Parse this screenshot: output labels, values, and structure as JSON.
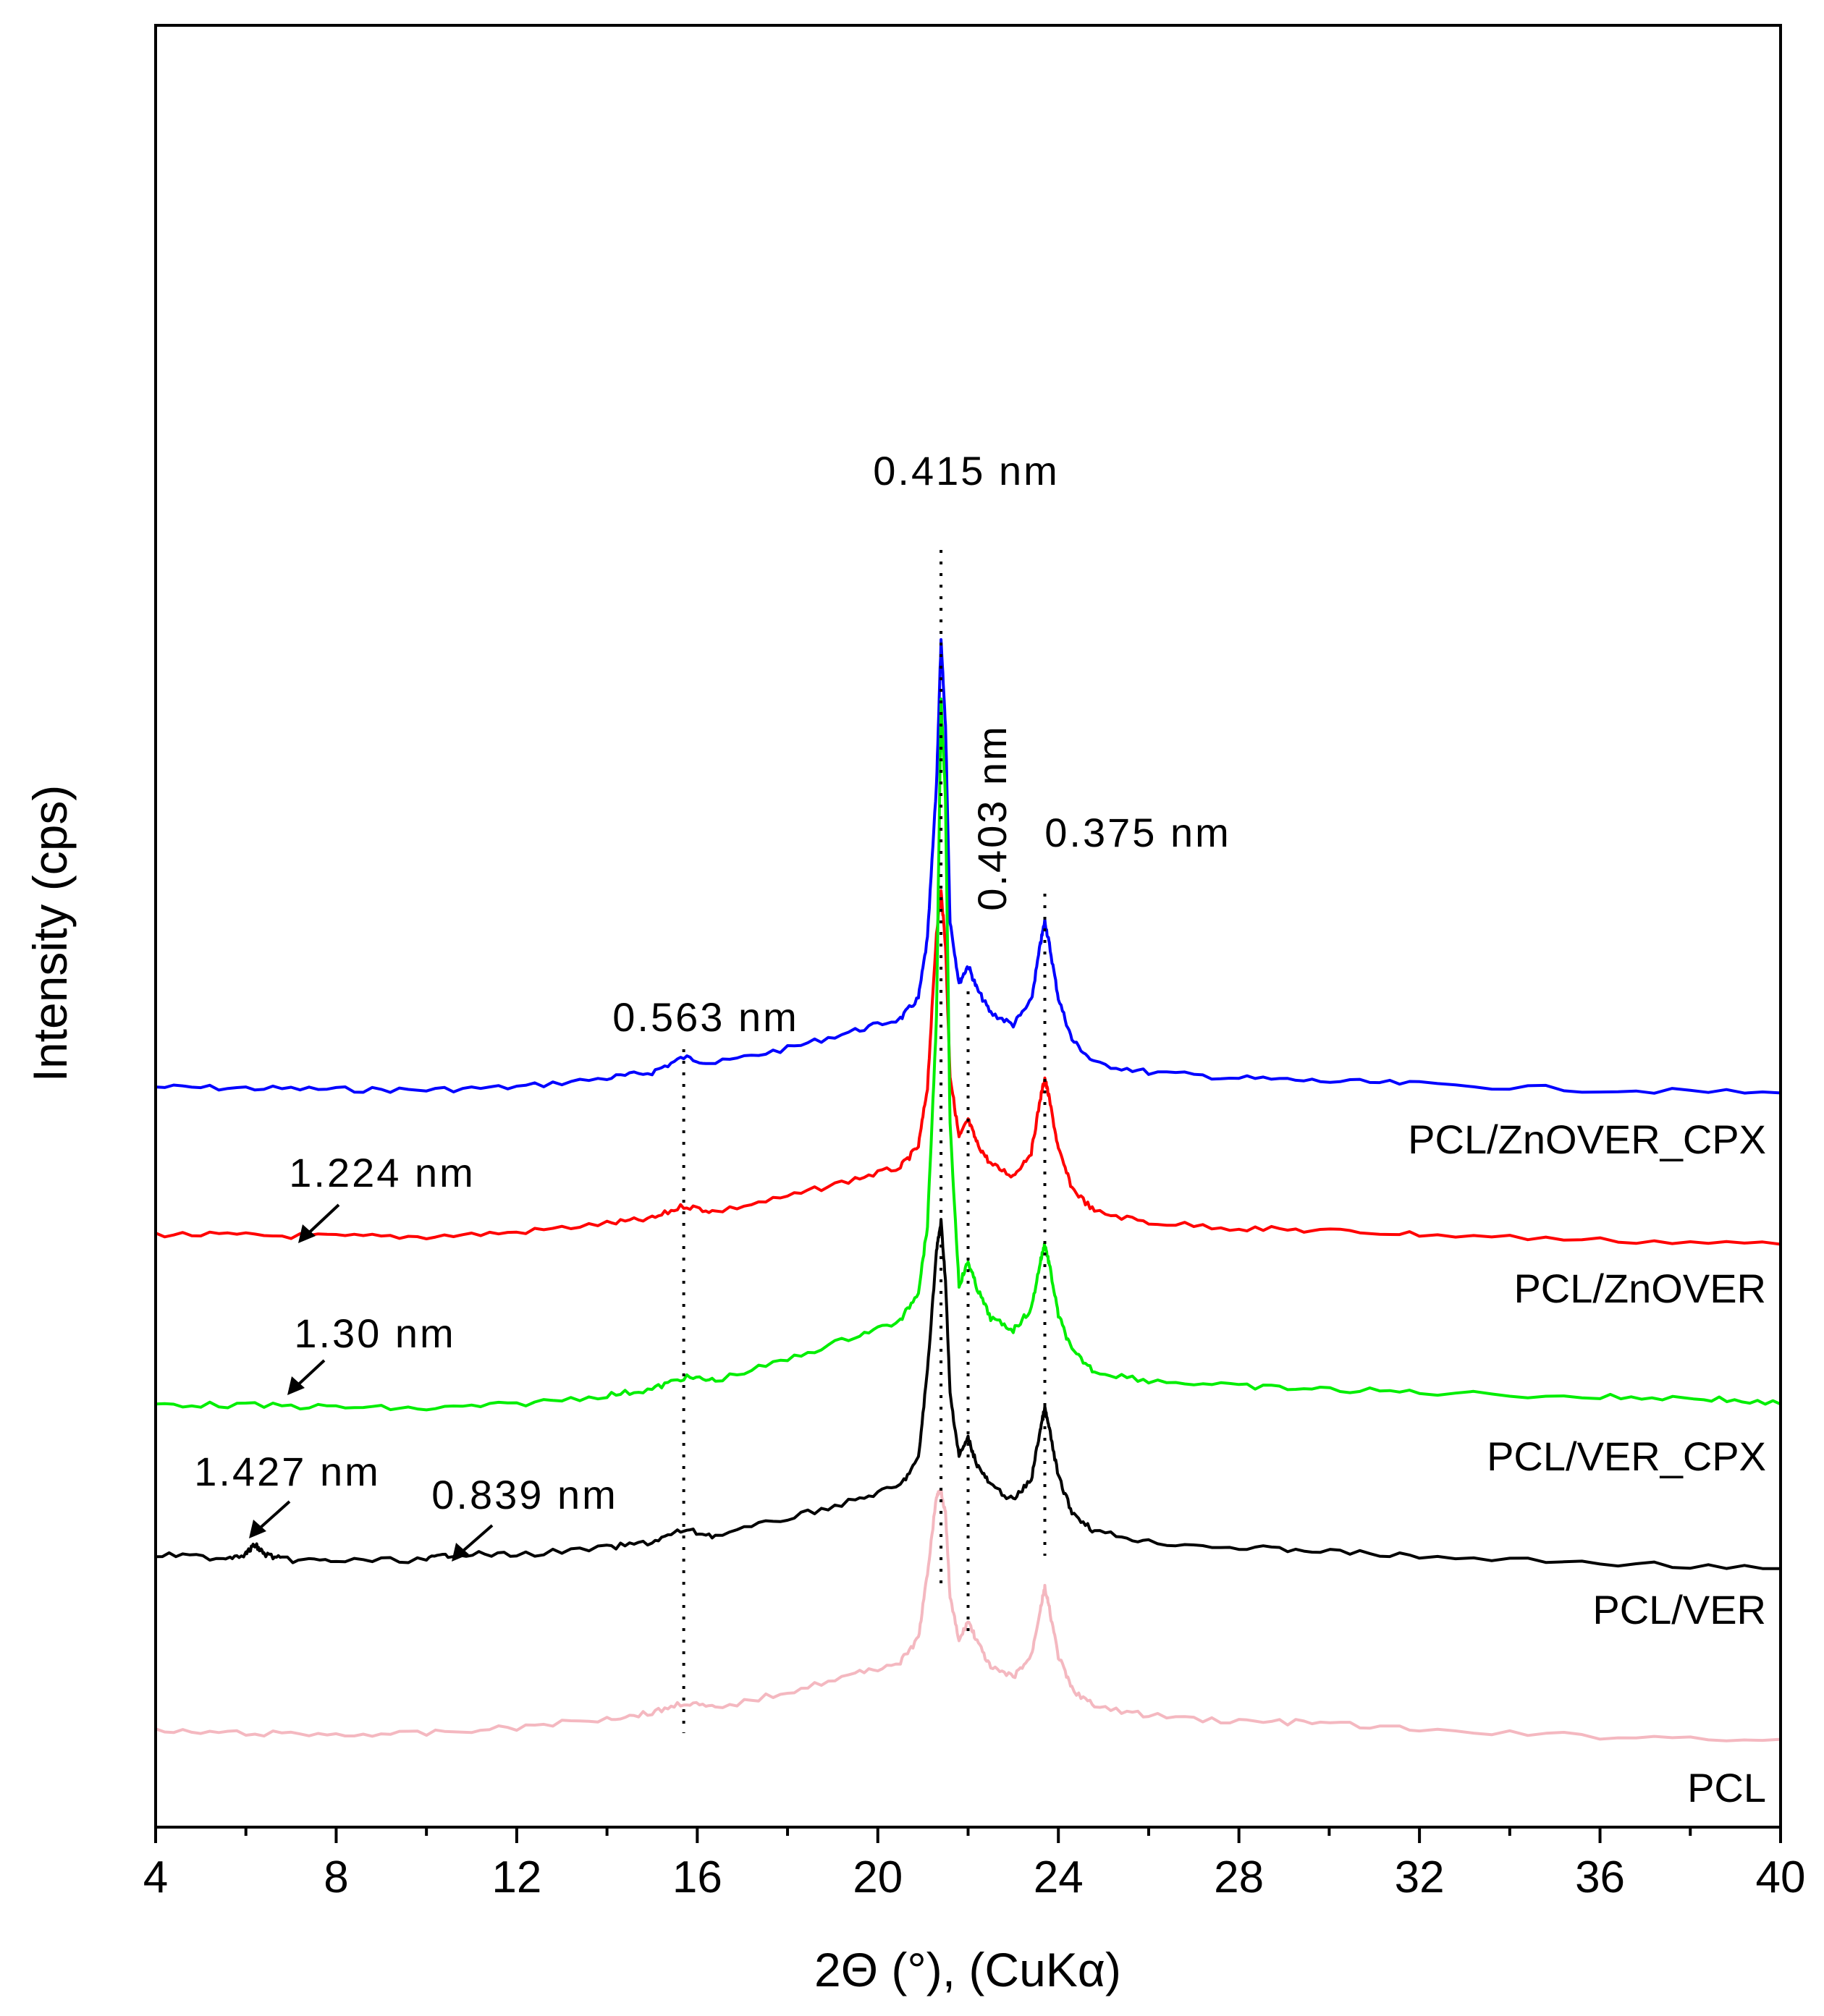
{
  "chart_data": {
    "type": "line",
    "title": "",
    "xlabel": "2Θ (°),  (CuKα)",
    "ylabel": "Intensity (cps)",
    "xlim": [
      4,
      40
    ],
    "xticks": [
      4,
      8,
      12,
      16,
      20,
      24,
      28,
      32,
      36,
      40
    ],
    "tick_labels": [
      "4",
      "8",
      "12",
      "16",
      "20",
      "24",
      "28",
      "32",
      "36",
      "40"
    ],
    "y_ticks_labeled": false,
    "grid": false,
    "peak_markers_2theta": [
      15.7,
      21.4,
      22.0,
      23.7
    ],
    "series": [
      {
        "name": "PCL/ZnOVER_CPX",
        "color": "#0000ff",
        "x": [
          4,
          6,
          8,
          10,
          12,
          14,
          15.0,
          15.7,
          16.4,
          18,
          19.5,
          20.5,
          20.9,
          21.1,
          21.3,
          21.4,
          21.5,
          21.6,
          21.8,
          22.0,
          22.2,
          22.5,
          23.0,
          23.4,
          23.6,
          23.7,
          23.8,
          24.0,
          24.3,
          24.8,
          26,
          28,
          29.8,
          32,
          36,
          40
        ],
        "y": [
          0.4,
          0.38,
          0.36,
          0.35,
          0.4,
          0.55,
          0.65,
          0.9,
          0.8,
          1.05,
          1.35,
          1.55,
          1.9,
          2.9,
          5.5,
          7.9,
          6.5,
          3.2,
          2.15,
          2.45,
          2.05,
          1.65,
          1.45,
          1.85,
          2.8,
          3.2,
          2.8,
          1.9,
          1.2,
          0.8,
          0.65,
          0.55,
          0.5,
          0.45,
          0.35,
          0.3
        ]
      },
      {
        "name": "PCL/ZnOVER",
        "color": "#ff0000",
        "x": [
          4,
          6,
          8,
          10,
          12,
          14,
          15.0,
          15.7,
          16.4,
          18,
          19.5,
          20.5,
          20.9,
          21.1,
          21.3,
          21.4,
          21.5,
          21.6,
          21.8,
          22.0,
          22.2,
          22.5,
          23.0,
          23.4,
          23.6,
          23.7,
          23.8,
          24.0,
          24.3,
          24.8,
          26,
          28,
          29.8,
          32,
          36,
          40
        ],
        "y": [
          0.42,
          0.4,
          0.38,
          0.38,
          0.45,
          0.6,
          0.68,
          0.9,
          0.8,
          1.05,
          1.35,
          1.55,
          1.9,
          2.9,
          5.5,
          6.2,
          5.3,
          3.1,
          2.05,
          2.35,
          1.95,
          1.6,
          1.4,
          1.8,
          2.7,
          3.05,
          2.7,
          1.85,
          1.2,
          0.8,
          0.62,
          0.52,
          0.48,
          0.42,
          0.32,
          0.25
        ]
      },
      {
        "name": "PCL/VER_CPX",
        "color": "#00ee00",
        "x": [
          4,
          6,
          8,
          10,
          12,
          14,
          15.0,
          15.7,
          16.4,
          18,
          19.5,
          20.5,
          20.9,
          21.1,
          21.3,
          21.4,
          21.5,
          21.6,
          21.8,
          22.0,
          22.2,
          22.5,
          23.0,
          23.4,
          23.6,
          23.7,
          23.8,
          24.0,
          24.3,
          24.8,
          26,
          28,
          29.8,
          32,
          36,
          38.3,
          40
        ],
        "y": [
          0.3,
          0.28,
          0.25,
          0.22,
          0.3,
          0.45,
          0.55,
          0.75,
          0.7,
          1.05,
          1.45,
          1.7,
          2.2,
          3.3,
          6.8,
          12.2,
          10.5,
          5.0,
          2.3,
          2.7,
          2.25,
          1.75,
          1.55,
          1.9,
          2.7,
          3.0,
          2.65,
          1.8,
          1.2,
          0.85,
          0.7,
          0.6,
          0.55,
          0.5,
          0.42,
          0.4,
          0.3
        ]
      },
      {
        "name": "PCL/VER",
        "color": "#000000",
        "x": [
          4,
          5.5,
          6.0,
          6.2,
          6.4,
          6.8,
          8,
          10,
          10.6,
          12,
          14,
          15.0,
          15.7,
          16.4,
          18,
          19.5,
          20.5,
          20.9,
          21.1,
          21.3,
          21.4,
          21.5,
          21.6,
          21.8,
          22.0,
          22.2,
          22.5,
          23.0,
          23.4,
          23.6,
          23.7,
          23.8,
          24.0,
          24.3,
          24.8,
          26,
          28,
          29.8,
          32,
          36,
          40
        ],
        "y": [
          0.38,
          0.33,
          0.4,
          0.55,
          0.4,
          0.3,
          0.28,
          0.3,
          0.4,
          0.38,
          0.5,
          0.6,
          0.8,
          0.7,
          1.0,
          1.3,
          1.55,
          2.0,
          3.5,
          5.5,
          6.0,
          5.0,
          3.1,
          2.05,
          2.35,
          1.9,
          1.55,
          1.3,
          1.65,
          2.5,
          2.85,
          2.5,
          1.7,
          1.1,
          0.78,
          0.6,
          0.5,
          0.45,
          0.35,
          0.25,
          0.15
        ]
      },
      {
        "name": "PCL",
        "color": "#f4b8c0",
        "x": [
          4,
          6,
          8,
          10,
          12,
          14,
          15.0,
          15.7,
          16.4,
          18,
          19.5,
          20.5,
          20.9,
          21.1,
          21.3,
          21.4,
          21.5,
          21.6,
          21.8,
          22.0,
          22.2,
          22.5,
          23.0,
          23.4,
          23.6,
          23.7,
          23.8,
          24.0,
          24.3,
          24.8,
          26,
          28,
          29.8,
          32,
          36,
          40
        ],
        "y": [
          0.33,
          0.3,
          0.28,
          0.3,
          0.4,
          0.55,
          0.65,
          0.82,
          0.72,
          1.0,
          1.3,
          1.5,
          1.9,
          3.0,
          4.3,
          4.4,
          4.0,
          2.6,
          1.85,
          2.2,
          1.85,
          1.4,
          1.25,
          1.6,
          2.4,
          2.75,
          2.4,
          1.6,
          1.05,
          0.75,
          0.6,
          0.5,
          0.48,
          0.35,
          0.25,
          0.2
        ]
      }
    ],
    "annotations": [
      {
        "text": "0.415 nm",
        "x": 21.4
      },
      {
        "text": "0.403 nm",
        "x": 22.0,
        "rotated": true
      },
      {
        "text": "0.375 nm",
        "x": 23.7
      },
      {
        "text": "0.563 nm",
        "x": 15.7
      },
      {
        "text": "1.224 nm",
        "x": 7.1,
        "arrow": true
      },
      {
        "text": "1.30 nm",
        "x": 6.9,
        "arrow": true
      },
      {
        "text": "1.427 nm",
        "x": 6.2,
        "arrow": true
      },
      {
        "text": "0.839 nm",
        "x": 10.6,
        "arrow": true
      }
    ]
  }
}
